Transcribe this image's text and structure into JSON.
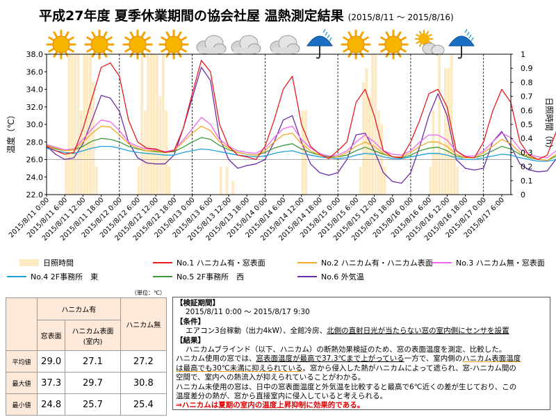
{
  "title": "平成27年度 夏季休業期間の協会社屋 温熱測定結果",
  "title_period": "(2015/8/11 ～ 2015/8/16)",
  "colors": {
    "sunshine": "#fde9c2",
    "no1": "#e41a1c",
    "no2": "#f5a623",
    "no3": "#ee66ee",
    "no4": "#1ea0dc",
    "no5": "#3a9a3a",
    "no6": "#6a2ca8"
  },
  "weather_icons": [
    "sun-icon",
    "sun-icon",
    "sun-icon",
    "sun-icon",
    "cloud-icon",
    "cloud-icon",
    "cloud-icon",
    "umbrella-icon",
    "sun-icon",
    "sun-icon",
    "sun-cloud-icon",
    "umbrella-icon"
  ],
  "chart_data": {
    "type": "line",
    "ylabel": "温度（℃）",
    "y2label": "日照時間（h）",
    "ylim": [
      22.0,
      38.0
    ],
    "y2lim": [
      0,
      1
    ],
    "yticks": [
      "38.0",
      "36.0",
      "34.0",
      "32.0",
      "30.0",
      "28.0",
      "26.0",
      "24.0",
      "22.0"
    ],
    "y2ticks": [
      "1",
      "0.9",
      "0.8",
      "0.7",
      "0.6",
      "0.5",
      "0.4",
      "0.3",
      "0.2",
      "0.1",
      "0"
    ],
    "x_start": "2015/8/11 0:00",
    "x_step_hours": 6,
    "xticks": [
      "2015/8/11 0:00",
      "2015/8/11 6:00",
      "2015/8/11 12:00",
      "2015/8/11 18:00",
      "2015/8/12 0:00",
      "2015/8/12 6:00",
      "2015/8/12 12:00",
      "2015/8/12 18:00",
      "2015/8/13 0:00",
      "2015/8/13 6:00",
      "2015/8/13 12:00",
      "2015/8/13 18:00",
      "2015/8/14 0:00",
      "2015/8/14 6:00",
      "2015/8/14 12:00",
      "2015/8/14 18:00",
      "2015/8/15 0:00",
      "2015/8/15 6:00",
      "2015/8/15 12:00",
      "2015/8/15 18:00",
      "2015/8/16 0:00",
      "2015/8/16 6:00",
      "2015/8/16 12:00",
      "2015/8/16 18:00",
      "2015/8/17 0:00",
      "2015/8/17 6:00"
    ],
    "day_lines": [
      "2015/8/12 0:00",
      "2015/8/13 0:00",
      "2015/8/14 0:00",
      "2015/8/15 0:00",
      "2015/8/16 0:00",
      "2015/8/17 0:00"
    ],
    "sunshine": {
      "name": "日照時間",
      "x": [
        "2015/8/11 6:00",
        "2015/8/11 7:00",
        "2015/8/11 8:00",
        "2015/8/11 9:00",
        "2015/8/11 10:00",
        "2015/8/11 11:00",
        "2015/8/11 12:00",
        "2015/8/11 13:00",
        "2015/8/11 14:00",
        "2015/8/11 15:00",
        "2015/8/11 16:00",
        "2015/8/12 6:00",
        "2015/8/12 7:00",
        "2015/8/12 8:00",
        "2015/8/12 9:00",
        "2015/8/12 10:00",
        "2015/8/12 11:00",
        "2015/8/12 12:00",
        "2015/8/12 13:00",
        "2015/8/12 14:00",
        "2015/8/12 15:00",
        "2015/8/12 16:00",
        "2015/8/13 9:00",
        "2015/8/13 11:00",
        "2015/8/13 13:00",
        "2015/8/14 12:00",
        "2015/8/14 13:00",
        "2015/8/15 7:00",
        "2015/8/15 8:00",
        "2015/8/15 9:00",
        "2015/8/15 10:00",
        "2015/8/15 11:00",
        "2015/8/15 12:00",
        "2015/8/15 13:00",
        "2015/8/15 14:00",
        "2015/8/15 15:00",
        "2015/8/16 6:00",
        "2015/8/16 7:00",
        "2015/8/16 8:00",
        "2015/8/16 9:00",
        "2015/8/16 10:00",
        "2015/8/16 11:00",
        "2015/8/16 12:00",
        "2015/8/16 13:00",
        "2015/8/16 14:00",
        "2015/8/16 15:00"
      ],
      "values": [
        0.3,
        1.0,
        1.0,
        1.0,
        1.0,
        0.6,
        1.0,
        1.0,
        1.0,
        0.8,
        0.2,
        0.2,
        1.0,
        0.6,
        1.0,
        1.0,
        1.0,
        1.0,
        0.7,
        1.0,
        0.6,
        0.2,
        0.2,
        0.2,
        0.1,
        0.6,
        0.6,
        0.2,
        0.8,
        0.9,
        0.7,
        1.0,
        1.0,
        0.6,
        0.5,
        0.2,
        0.2,
        0.6,
        0.3,
        1.0,
        0.3,
        0.9,
        0.9,
        1.0,
        0.4,
        0.2
      ]
    },
    "series": [
      {
        "name": "No.1 ハニカム有・窓表面",
        "values": [
          27.5,
          27.0,
          26.6,
          26.8,
          29.5,
          33.0,
          36.5,
          37.0,
          35.5,
          30.5,
          28.0,
          27.3,
          27.2,
          26.8,
          27.0,
          29.5,
          33.5,
          37.3,
          36.0,
          30.0,
          27.5,
          26.5,
          26.3,
          26.0,
          27.5,
          30.5,
          34.0,
          35.5,
          30.0,
          27.5,
          26.6,
          26.1,
          27.0,
          28.0,
          32.5,
          34.0,
          31.0,
          27.0,
          26.3,
          26.2,
          28.0,
          30.5,
          33.5,
          34.0,
          32.0,
          27.0,
          26.3,
          26.2,
          28.0,
          31.5,
          34.0,
          32.5,
          28.0,
          26.5,
          26.0,
          26.5,
          29.2
        ]
      },
      {
        "name": "No.2 ハニカム有・ハニカム表面",
        "values": [
          27.6,
          27.3,
          27.0,
          27.1,
          28.0,
          29.0,
          29.8,
          29.7,
          28.8,
          27.8,
          27.3,
          27.0,
          27.0,
          26.8,
          27.0,
          28.0,
          29.0,
          29.8,
          29.3,
          28.0,
          27.3,
          26.8,
          26.6,
          26.5,
          27.0,
          28.0,
          28.8,
          29.0,
          27.8,
          27.0,
          26.5,
          26.2,
          26.3,
          26.8,
          27.5,
          28.0,
          27.5,
          26.7,
          26.3,
          26.3,
          26.8,
          27.5,
          28.0,
          28.0,
          27.5,
          26.6,
          26.2,
          26.2,
          26.8,
          27.5,
          28.3,
          27.8,
          26.8,
          26.3,
          26.0,
          25.9,
          26.6
        ]
      },
      {
        "name": "No.3 ハニカム無・窓表面",
        "values": [
          27.7,
          27.4,
          27.1,
          27.2,
          28.3,
          29.5,
          30.5,
          30.3,
          29.3,
          28.0,
          27.5,
          27.2,
          27.1,
          26.9,
          27.1,
          28.2,
          29.5,
          30.8,
          30.0,
          28.3,
          27.5,
          27.0,
          26.8,
          26.7,
          27.3,
          28.5,
          29.5,
          29.8,
          28.3,
          27.3,
          26.7,
          26.4,
          26.5,
          27.0,
          28.0,
          28.8,
          28.0,
          27.0,
          26.6,
          26.5,
          27.0,
          28.0,
          28.8,
          28.8,
          28.2,
          27.0,
          26.4,
          26.4,
          27.0,
          28.0,
          29.0,
          28.5,
          27.2,
          26.6,
          26.3,
          26.2,
          27.0
        ]
      },
      {
        "name": "No.4 2F事務所　東",
        "values": [
          27.3,
          27.0,
          26.8,
          26.7,
          27.0,
          27.3,
          27.5,
          27.5,
          27.3,
          27.0,
          26.8,
          26.7,
          26.6,
          26.5,
          26.5,
          26.8,
          27.0,
          27.2,
          27.1,
          26.9,
          26.7,
          26.5,
          26.4,
          26.3,
          26.4,
          26.7,
          26.9,
          27.0,
          26.7,
          26.5,
          26.3,
          26.2,
          26.1,
          26.2,
          26.5,
          26.7,
          26.6,
          26.3,
          26.1,
          26.1,
          26.3,
          26.5,
          26.7,
          26.7,
          26.5,
          26.2,
          26.0,
          26.0,
          26.2,
          26.4,
          26.6,
          26.5,
          26.2,
          26.0,
          25.8,
          25.8,
          26.0
        ]
      },
      {
        "name": "No.5 2F事務所　西",
        "values": [
          27.6,
          27.2,
          27.0,
          27.1,
          27.5,
          28.1,
          28.4,
          28.3,
          28.0,
          27.5,
          27.2,
          27.0,
          26.9,
          26.8,
          26.9,
          27.4,
          28.0,
          28.5,
          28.3,
          27.6,
          27.1,
          26.8,
          26.6,
          26.5,
          26.8,
          27.3,
          27.6,
          27.8,
          27.2,
          26.8,
          26.5,
          26.3,
          26.3,
          26.5,
          27.0,
          27.4,
          27.0,
          26.6,
          26.3,
          26.2,
          26.5,
          27.0,
          27.3,
          27.4,
          27.0,
          26.4,
          26.2,
          26.2,
          26.5,
          27.0,
          27.5,
          27.2,
          26.6,
          26.2,
          26.0,
          25.9,
          26.4
        ]
      },
      {
        "name": "No.6 外気温",
        "values": [
          27.5,
          26.6,
          26.0,
          26.2,
          27.8,
          30.5,
          33.3,
          33.0,
          31.5,
          28.0,
          26.2,
          25.6,
          25.5,
          25.5,
          26.5,
          29.5,
          33.0,
          36.5,
          35.0,
          28.5,
          26.0,
          25.0,
          25.3,
          25.5,
          26.0,
          28.0,
          30.5,
          31.0,
          28.0,
          25.5,
          24.5,
          24.2,
          24.5,
          26.0,
          28.8,
          29.0,
          27.0,
          24.5,
          23.5,
          23.3,
          24.5,
          27.5,
          31.0,
          33.5,
          31.0,
          26.0,
          25.0,
          24.8,
          25.0,
          28.0,
          29.2,
          27.5,
          25.5,
          24.8,
          24.6,
          24.7,
          26.1
        ]
      }
    ]
  },
  "legend": {
    "sunshine": "日照時間",
    "no1": "No.1 ハニカム有・窓表面",
    "no2": "No.2 ハニカム有・ハニカム表面",
    "no3": "No.3 ハニカム無・窓表面",
    "no4": "No.4 2F事務所　東",
    "no5": "No.5 2F事務所　西",
    "no6": "No.6 外気温"
  },
  "stats": {
    "unit": "（単位：℃）",
    "col_group": "ハニカム有",
    "col_window": "窓表面",
    "col_honeycomb_line1": "ハニカム表面",
    "col_honeycomb_line2": "(室内)",
    "col_none": "ハニカム無",
    "rows": [
      {
        "label": "平均値",
        "v1": "29.0",
        "v2": "27.1",
        "v3": "27.2"
      },
      {
        "label": "最大値",
        "v1": "37.3",
        "v2": "29.7",
        "v3": "30.8"
      },
      {
        "label": "最小値",
        "v1": "24.8",
        "v2": "25.7",
        "v3": "25.4"
      }
    ]
  },
  "notes": {
    "period_h": "【検証期間】",
    "period": "2015/8/11 0:00 ～ 2015/8/17 9:30",
    "cond_h": "【条件】",
    "cond_a": "エアコン3台稼動（出力4kW）、全館冷房、",
    "cond_b": "北側の直射日光が当たらない窓の室内側にセンサを設置",
    "result_h": "【結果】",
    "r1": "ハニカムブラインド（以下、ハニカム）の断熱効果検証のため、窓の表面温度を測定、比較した。",
    "r2a": "ハニカム使用の窓では、",
    "r2b": "窓表面温度が最高で37.3℃まで上がっている",
    "r2c": "一方で、室内側の",
    "r2d": "ハニカム表面温度",
    "r3a": "は最高でも30℃未満に抑えられている",
    "r3b": "。窓から侵入した熱がハニカムによって遮られ、窓-ハニカム間の",
    "r4": "空間で、室内への熱流入が抑えられていることがわかる。",
    "r5": "ハニカム未使用の窓は、日中の窓表面温度と外気温を比較すると最高で6℃近くの差が生じており、この",
    "r6": "温度差分の熱が、窓から直接室内に侵入していると考えられる。",
    "conclusion": "⇒ハニカムは夏期の室内の温度上昇抑制に効果的である。"
  }
}
